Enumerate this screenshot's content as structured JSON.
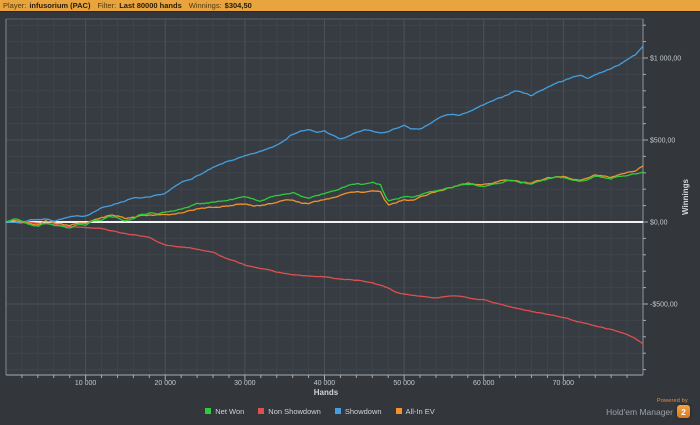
{
  "topbar": {
    "player_label": "Player:",
    "player_value": "infusorium (PAC)",
    "filter_label": "Filter:",
    "filter_value": "Last 80000 hands",
    "winnings_label": "Winnings:",
    "winnings_value": "$304,50"
  },
  "footer": {
    "powered_by": "Powered by",
    "brand": "Hold'em Manager",
    "logo_text": "2"
  },
  "colors": {
    "topbar_bg": "#e9a43e",
    "outer_bg": "#33373c",
    "plot_bg": "#373c42",
    "grid_minor": "#3e444b",
    "grid_major": "#4a5159",
    "axis_line": "#a6acb2",
    "zero_line": "#f2f2f2",
    "tick_text": "#c3c8cd",
    "net_won": "#2ecc3a",
    "non_showdown": "#de4f4f",
    "showdown": "#42a0e0",
    "all_in_ev": "#f0932b"
  },
  "chart_data": {
    "type": "line",
    "title": "",
    "xlabel": "Hands",
    "ylabel": "Winnings",
    "x_range": [
      0,
      80000
    ],
    "y_range": [
      -930,
      1240
    ],
    "grid": true,
    "legend_position": "bottom",
    "x_ticks": [
      {
        "hands": 10000,
        "label": "10 000"
      },
      {
        "hands": 20000,
        "label": "20 000"
      },
      {
        "hands": 30000,
        "label": "30 000"
      },
      {
        "hands": 40000,
        "label": "40 000"
      },
      {
        "hands": 50000,
        "label": "50 000"
      },
      {
        "hands": 60000,
        "label": "60 000"
      },
      {
        "hands": 70000,
        "label": "70 000"
      }
    ],
    "y_ticks": [
      {
        "value": 1000,
        "label": "$1 000,00"
      },
      {
        "value": 500,
        "label": "$500,00"
      },
      {
        "value": 0,
        "label": "$0,00"
      },
      {
        "value": -500,
        "label": "-$500,00"
      }
    ],
    "legend_order": [
      "Net Won",
      "Non Showdown",
      "Showdown",
      "All-In EV"
    ],
    "series": [
      {
        "name": "Non Showdown",
        "color": "#de4f4f",
        "noise": 4,
        "seed": 13,
        "points": [
          [
            0,
            0
          ],
          [
            2000,
            5
          ],
          [
            4000,
            -8
          ],
          [
            6000,
            -12
          ],
          [
            8000,
            -28
          ],
          [
            10000,
            -32
          ],
          [
            12000,
            -38
          ],
          [
            14000,
            -62
          ],
          [
            16000,
            -78
          ],
          [
            18000,
            -95
          ],
          [
            19000,
            -122
          ],
          [
            20000,
            -140
          ],
          [
            22000,
            -152
          ],
          [
            24000,
            -165
          ],
          [
            26000,
            -185
          ],
          [
            28000,
            -228
          ],
          [
            30000,
            -262
          ],
          [
            32000,
            -282
          ],
          [
            34000,
            -305
          ],
          [
            36000,
            -322
          ],
          [
            38000,
            -330
          ],
          [
            40000,
            -335
          ],
          [
            42000,
            -348
          ],
          [
            44000,
            -355
          ],
          [
            46000,
            -370
          ],
          [
            47000,
            -385
          ],
          [
            48000,
            -402
          ],
          [
            49000,
            -428
          ],
          [
            50000,
            -440
          ],
          [
            51000,
            -448
          ],
          [
            52000,
            -452
          ],
          [
            54000,
            -462
          ],
          [
            55000,
            -455
          ],
          [
            56000,
            -448
          ],
          [
            57000,
            -455
          ],
          [
            58000,
            -462
          ],
          [
            60000,
            -475
          ],
          [
            61000,
            -488
          ],
          [
            62000,
            -502
          ],
          [
            64000,
            -525
          ],
          [
            66000,
            -545
          ],
          [
            68000,
            -562
          ],
          [
            70000,
            -582
          ],
          [
            72000,
            -610
          ],
          [
            74000,
            -632
          ],
          [
            76000,
            -655
          ],
          [
            78000,
            -685
          ],
          [
            79000,
            -712
          ],
          [
            80000,
            -742
          ]
        ]
      },
      {
        "name": "Showdown",
        "color": "#42a0e0",
        "noise": 7,
        "seed": 7,
        "points": [
          [
            0,
            0
          ],
          [
            2000,
            -5
          ],
          [
            3000,
            14
          ],
          [
            5000,
            18
          ],
          [
            6000,
            8
          ],
          [
            8000,
            30
          ],
          [
            10000,
            38
          ],
          [
            12000,
            85
          ],
          [
            14000,
            115
          ],
          [
            16000,
            145
          ],
          [
            18000,
            148
          ],
          [
            20000,
            175
          ],
          [
            22000,
            240
          ],
          [
            24000,
            280
          ],
          [
            26000,
            330
          ],
          [
            28000,
            372
          ],
          [
            30000,
            400
          ],
          [
            32000,
            430
          ],
          [
            34000,
            470
          ],
          [
            36000,
            535
          ],
          [
            37000,
            555
          ],
          [
            38000,
            562
          ],
          [
            39000,
            545
          ],
          [
            40000,
            556
          ],
          [
            41000,
            528
          ],
          [
            42000,
            505
          ],
          [
            43000,
            522
          ],
          [
            44000,
            545
          ],
          [
            45000,
            562
          ],
          [
            46000,
            552
          ],
          [
            47000,
            540
          ],
          [
            48000,
            550
          ],
          [
            49000,
            572
          ],
          [
            50000,
            588
          ],
          [
            51000,
            568
          ],
          [
            52000,
            562
          ],
          [
            53000,
            592
          ],
          [
            54000,
            622
          ],
          [
            55000,
            648
          ],
          [
            56000,
            658
          ],
          [
            57000,
            648
          ],
          [
            58000,
            672
          ],
          [
            59000,
            690
          ],
          [
            60000,
            715
          ],
          [
            61000,
            735
          ],
          [
            62000,
            755
          ],
          [
            63000,
            778
          ],
          [
            64000,
            802
          ],
          [
            65000,
            788
          ],
          [
            66000,
            772
          ],
          [
            67000,
            798
          ],
          [
            68000,
            822
          ],
          [
            69000,
            845
          ],
          [
            70000,
            862
          ],
          [
            71000,
            878
          ],
          [
            72000,
            898
          ],
          [
            73000,
            876
          ],
          [
            74000,
            898
          ],
          [
            75000,
            918
          ],
          [
            76000,
            938
          ],
          [
            77000,
            956
          ],
          [
            78000,
            992
          ],
          [
            79000,
            1018
          ],
          [
            80000,
            1072
          ]
        ]
      },
      {
        "name": "All-In EV",
        "color": "#f0932b",
        "noise": 8,
        "seed": 5,
        "points": [
          [
            0,
            0
          ],
          [
            1000,
            12
          ],
          [
            2000,
            -2
          ],
          [
            4000,
            -18
          ],
          [
            5000,
            8
          ],
          [
            7000,
            -12
          ],
          [
            8000,
            -22
          ],
          [
            9000,
            -5
          ],
          [
            10000,
            -12
          ],
          [
            11000,
            12
          ],
          [
            12000,
            25
          ],
          [
            13000,
            42
          ],
          [
            14000,
            38
          ],
          [
            15000,
            22
          ],
          [
            16000,
            30
          ],
          [
            17000,
            42
          ],
          [
            18000,
            40
          ],
          [
            20000,
            42
          ],
          [
            22000,
            58
          ],
          [
            24000,
            80
          ],
          [
            26000,
            90
          ],
          [
            28000,
            98
          ],
          [
            29000,
            108
          ],
          [
            30000,
            112
          ],
          [
            31000,
            100
          ],
          [
            32000,
            98
          ],
          [
            33000,
            112
          ],
          [
            34000,
            122
          ],
          [
            35000,
            130
          ],
          [
            36000,
            138
          ],
          [
            37000,
            118
          ],
          [
            38000,
            112
          ],
          [
            39000,
            125
          ],
          [
            40000,
            138
          ],
          [
            41000,
            148
          ],
          [
            42000,
            162
          ],
          [
            43000,
            178
          ],
          [
            44000,
            188
          ],
          [
            45000,
            182
          ],
          [
            46000,
            192
          ],
          [
            47000,
            188
          ],
          [
            47500,
            140
          ],
          [
            48000,
            105
          ],
          [
            49000,
            120
          ],
          [
            50000,
            138
          ],
          [
            51000,
            132
          ],
          [
            52000,
            152
          ],
          [
            53000,
            168
          ],
          [
            54000,
            185
          ],
          [
            55000,
            198
          ],
          [
            56000,
            212
          ],
          [
            57000,
            225
          ],
          [
            58000,
            238
          ],
          [
            59000,
            228
          ],
          [
            60000,
            228
          ],
          [
            61000,
            238
          ],
          [
            62000,
            248
          ],
          [
            63000,
            258
          ],
          [
            64000,
            252
          ],
          [
            65000,
            242
          ],
          [
            66000,
            238
          ],
          [
            67000,
            252
          ],
          [
            68000,
            268
          ],
          [
            69000,
            272
          ],
          [
            70000,
            278
          ],
          [
            71000,
            262
          ],
          [
            72000,
            255
          ],
          [
            73000,
            270
          ],
          [
            74000,
            288
          ],
          [
            75000,
            282
          ],
          [
            76000,
            272
          ],
          [
            77000,
            288
          ],
          [
            78000,
            300
          ],
          [
            79000,
            315
          ],
          [
            80000,
            342
          ]
        ]
      },
      {
        "name": "Net Won",
        "color": "#2ecc3a",
        "noise": 9,
        "seed": 21,
        "points": [
          [
            0,
            0
          ],
          [
            1000,
            20
          ],
          [
            2000,
            5
          ],
          [
            3000,
            -15
          ],
          [
            4000,
            -25
          ],
          [
            5000,
            -5
          ],
          [
            7000,
            -30
          ],
          [
            8000,
            -35
          ],
          [
            9000,
            -15
          ],
          [
            10000,
            -22
          ],
          [
            11000,
            5
          ],
          [
            12000,
            15
          ],
          [
            13000,
            35
          ],
          [
            14000,
            28
          ],
          [
            15000,
            10
          ],
          [
            16000,
            18
          ],
          [
            17000,
            48
          ],
          [
            18000,
            55
          ],
          [
            19000,
            50
          ],
          [
            20000,
            62
          ],
          [
            22000,
            78
          ],
          [
            24000,
            110
          ],
          [
            26000,
            122
          ],
          [
            28000,
            132
          ],
          [
            29000,
            145
          ],
          [
            30000,
            152
          ],
          [
            31000,
            138
          ],
          [
            32000,
            130
          ],
          [
            33000,
            148
          ],
          [
            34000,
            162
          ],
          [
            35000,
            172
          ],
          [
            36000,
            180
          ],
          [
            37000,
            155
          ],
          [
            38000,
            148
          ],
          [
            39000,
            162
          ],
          [
            40000,
            172
          ],
          [
            41000,
            185
          ],
          [
            42000,
            202
          ],
          [
            43000,
            222
          ],
          [
            44000,
            232
          ],
          [
            45000,
            228
          ],
          [
            46000,
            238
          ],
          [
            47000,
            228
          ],
          [
            47500,
            170
          ],
          [
            48000,
            128
          ],
          [
            49000,
            138
          ],
          [
            50000,
            155
          ],
          [
            51000,
            148
          ],
          [
            52000,
            165
          ],
          [
            53000,
            178
          ],
          [
            54000,
            192
          ],
          [
            55000,
            202
          ],
          [
            56000,
            212
          ],
          [
            57000,
            222
          ],
          [
            58000,
            232
          ],
          [
            59000,
            225
          ],
          [
            60000,
            222
          ],
          [
            61000,
            232
          ],
          [
            62000,
            242
          ],
          [
            63000,
            252
          ],
          [
            64000,
            248
          ],
          [
            65000,
            238
          ],
          [
            66000,
            232
          ],
          [
            67000,
            248
          ],
          [
            68000,
            262
          ],
          [
            69000,
            268
          ],
          [
            70000,
            272
          ],
          [
            71000,
            255
          ],
          [
            72000,
            248
          ],
          [
            73000,
            262
          ],
          [
            74000,
            280
          ],
          [
            75000,
            272
          ],
          [
            76000,
            265
          ],
          [
            77000,
            278
          ],
          [
            78000,
            288
          ],
          [
            79000,
            295
          ],
          [
            80000,
            304
          ]
        ]
      }
    ]
  }
}
